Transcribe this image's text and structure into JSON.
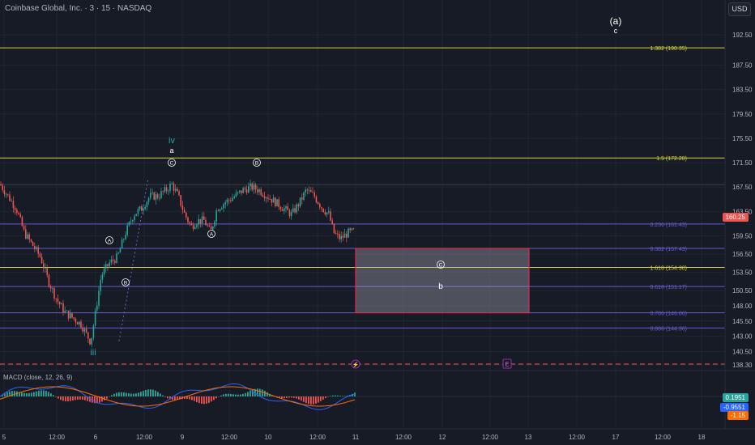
{
  "header": {
    "symbol_title": "Coinbase Global, Inc. · 3 · 15 · NASDAQ",
    "currency_button": "USD"
  },
  "colors": {
    "background": "#171b26",
    "up": "#26a69a",
    "down": "#ef5350",
    "fib_yellow": "#d4d43a",
    "fib_purple": "#6a5acd",
    "box_border": "#e0294a",
    "current_price_bg": "#ef5350",
    "macd_line": "#2962ff",
    "signal_line": "#ff6d00"
  },
  "price_axis": {
    "ticks": [
      "192.50",
      "187.50",
      "183.50",
      "179.50",
      "175.50",
      "171.50",
      "167.50",
      "163.50",
      "159.50",
      "156.50",
      "153.50",
      "150.50",
      "148.00",
      "145.50",
      "143.00",
      "140.50",
      "138.30"
    ],
    "current_price": "160.25"
  },
  "fib_levels": [
    {
      "label": "1.382 (190.35)",
      "price": 190.35,
      "color": "yellow"
    },
    {
      "label": "1.5 (172.28)",
      "price": 172.28,
      "color": "yellow"
    },
    {
      "label": "0.236 (161.43)",
      "price": 161.43,
      "color": "purple"
    },
    {
      "label": "0.382 (157.43)",
      "price": 157.43,
      "color": "purple"
    },
    {
      "label": "1.618 (154.30)",
      "price": 154.3,
      "color": "yellow"
    },
    {
      "label": "0.618 (151.17)",
      "price": 151.17,
      "color": "purple"
    },
    {
      "label": "0.786 (146.86)",
      "price": 146.86,
      "color": "purple"
    },
    {
      "label": "0.886 (144.36)",
      "price": 144.36,
      "color": "purple"
    }
  ],
  "wave_labels": {
    "a_big": "(a)",
    "c_small": "c",
    "iv": "iv",
    "a_small": "a",
    "iii": "iii",
    "b_box": "b",
    "circle_A": "A",
    "circle_B": "B",
    "circle_C": "C"
  },
  "macd": {
    "label": "MACD (close, 12, 26, 9)",
    "values": [
      "0.1951",
      "-0.9551",
      "-1.15"
    ]
  },
  "time_axis": [
    "5",
    "12:00",
    "6",
    "12:00",
    "9",
    "12:00",
    "10",
    "12:00",
    "11",
    "12:00",
    "12",
    "12:00",
    "13",
    "12:00",
    "17",
    "12:00",
    "18"
  ],
  "event_markers": [
    "E"
  ]
}
